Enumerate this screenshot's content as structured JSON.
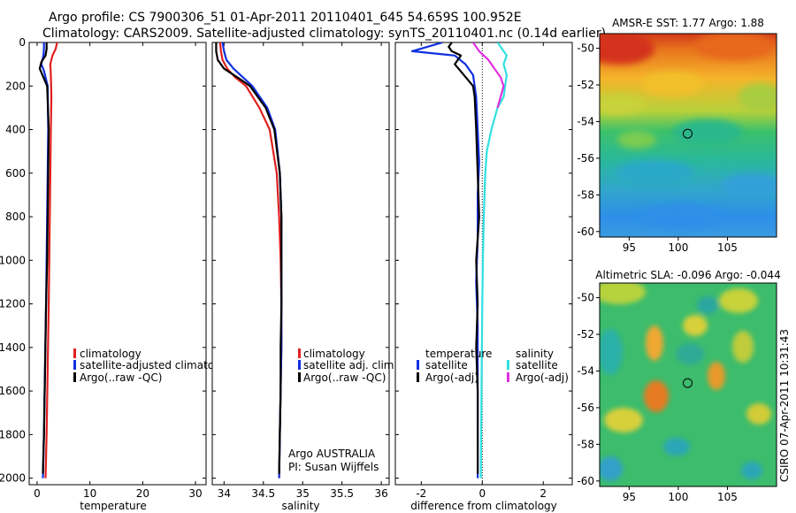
{
  "figure": {
    "title_line1": "Argo profile: CS 7900306_51 01-Apr-2011 20110401_645 54.659S 100.952E",
    "title_line2": "Climatology: CARS2009. Satellite-adjusted climatology: synTS_20110401.nc (0.14d earlier)",
    "side_stamp": "CSIRO 07-Apr-2011 10:31:43"
  },
  "colors": {
    "climatology": "#e02020",
    "satellite": "#1030e0",
    "argo": "#000000",
    "satellite_salinity": "#30e0e0",
    "argo_salinity": "#e030e0",
    "zero_line": "#000000"
  },
  "chart_data": [
    {
      "type": "line",
      "panel": "temperature",
      "xlabel": "temperature",
      "ylabel": "",
      "xlim": [
        -1.5,
        32
      ],
      "ylim": [
        0,
        2030
      ],
      "y_reversed": true,
      "xticks": [
        0,
        10,
        20,
        30
      ],
      "yticks": [
        0,
        200,
        400,
        600,
        800,
        1000,
        1200,
        1400,
        1600,
        1800,
        2000
      ],
      "legend": [
        {
          "label": "climatology",
          "color": "#e02020"
        },
        {
          "label": "satellite-adjusted climatolo",
          "color": "#1030e0"
        },
        {
          "label": "Argo(..raw -QC)",
          "color": "#000000"
        }
      ],
      "series": [
        {
          "name": "climatology",
          "color": "#e02020",
          "x": [
            3.8,
            3.5,
            2.9,
            2.5,
            2.6,
            2.7,
            2.6,
            2.5,
            2.4,
            2.3,
            2.2,
            2.0,
            1.8,
            1.6
          ],
          "y": [
            0,
            30,
            60,
            100,
            150,
            250,
            400,
            600,
            800,
            1000,
            1200,
            1500,
            1800,
            2000
          ]
        },
        {
          "name": "satellite",
          "color": "#1030e0",
          "x": [
            1.3,
            1.3,
            1.2,
            0.8,
            1.3,
            2.0,
            2.1,
            2.0,
            1.9,
            1.8,
            1.7,
            1.5,
            1.3,
            1.1
          ],
          "y": [
            0,
            30,
            60,
            100,
            130,
            200,
            400,
            600,
            800,
            1000,
            1200,
            1500,
            1800,
            2000
          ]
        },
        {
          "name": "Argo",
          "color": "#000000",
          "x": [
            1.8,
            1.8,
            1.6,
            0.8,
            0.5,
            1.9,
            2.2,
            2.1,
            2.0,
            1.9,
            1.7,
            1.5,
            1.3,
            1.1
          ],
          "y": [
            0,
            30,
            60,
            90,
            120,
            200,
            400,
            600,
            800,
            1000,
            1200,
            1500,
            1800,
            1980
          ]
        }
      ]
    },
    {
      "type": "line",
      "panel": "salinity",
      "xlabel": "salinity",
      "ylabel": "",
      "xlim": [
        33.85,
        36.1
      ],
      "ylim": [
        0,
        2030
      ],
      "y_reversed": true,
      "xticks": [
        34,
        34.5,
        35,
        35.5,
        36
      ],
      "legend": [
        {
          "label": "climatology",
          "color": "#e02020"
        },
        {
          "label": "satellite adj. clim.",
          "color": "#1030e0"
        },
        {
          "label": "Argo(..raw -QC)",
          "color": "#000000"
        }
      ],
      "annotation_line1": "Argo AUSTRALIA",
      "annotation_line2": "PI: Susan Wijffels",
      "series": [
        {
          "name": "climatology",
          "color": "#e02020",
          "x": [
            33.95,
            33.96,
            33.98,
            34.04,
            34.14,
            34.28,
            34.45,
            34.58,
            34.67,
            34.7,
            34.72,
            34.73,
            34.73,
            34.72,
            34.71,
            34.7
          ],
          "y": [
            0,
            40,
            80,
            120,
            160,
            200,
            300,
            400,
            600,
            800,
            1000,
            1200,
            1400,
            1600,
            1800,
            2000
          ]
        },
        {
          "name": "satellite",
          "color": "#1030e0",
          "x": [
            33.98,
            34.0,
            34.03,
            34.12,
            34.24,
            34.36,
            34.55,
            34.65,
            34.71,
            34.73,
            34.73,
            34.73,
            34.73,
            34.72,
            34.71,
            34.7
          ],
          "y": [
            0,
            40,
            80,
            120,
            160,
            200,
            300,
            400,
            600,
            800,
            1000,
            1200,
            1400,
            1600,
            1800,
            2000
          ]
        },
        {
          "name": "Argo",
          "color": "#000000",
          "x": [
            33.9,
            33.9,
            33.92,
            34.0,
            34.17,
            34.33,
            34.53,
            34.64,
            34.71,
            34.73,
            34.73,
            34.73,
            34.72,
            34.72,
            34.71,
            34.7
          ],
          "y": [
            0,
            40,
            80,
            120,
            160,
            200,
            300,
            400,
            600,
            800,
            1000,
            1200,
            1400,
            1600,
            1800,
            1980
          ]
        }
      ]
    },
    {
      "type": "line",
      "panel": "difference",
      "xlabel": "difference from climatology",
      "ylabel": "",
      "xlim": [
        -2.85,
        2.95
      ],
      "ylim": [
        0,
        2030
      ],
      "y_reversed": true,
      "xticks": [
        -2,
        0,
        2
      ],
      "legend_temperature_title": "temperature",
      "legend_salinity_title": "salinity",
      "legend_temperature": [
        {
          "label": "satellite",
          "color": "#1030e0"
        },
        {
          "label": "Argo(-adj)",
          "color": "#000000"
        }
      ],
      "legend_salinity": [
        {
          "label": "satellite",
          "color": "#30e0e0"
        },
        {
          "label": "Argo(-adj)",
          "color": "#e030e0"
        }
      ],
      "series": [
        {
          "name": "temperature satellite",
          "color": "#1030e0",
          "x": [
            -1.3,
            -1.8,
            -2.3,
            -0.9,
            -0.55,
            -0.3,
            -0.2,
            -0.15,
            -0.1,
            -0.15,
            -0.15,
            -0.2,
            -0.15,
            -0.15,
            -0.15,
            -0.15,
            -0.15
          ],
          "y": [
            0,
            20,
            40,
            60,
            100,
            150,
            250,
            400,
            550,
            700,
            900,
            1100,
            1300,
            1500,
            1700,
            1900,
            2000
          ]
        },
        {
          "name": "temperature Argo",
          "color": "#000000",
          "x": [
            -1.0,
            -1.1,
            -1.0,
            -0.7,
            -0.9,
            -0.6,
            -0.3,
            -0.25,
            -0.2,
            -0.15,
            -0.1,
            -0.2,
            -0.15,
            -0.2,
            -0.15,
            -0.15,
            -0.15
          ],
          "y": [
            0,
            20,
            40,
            60,
            100,
            150,
            200,
            250,
            400,
            600,
            800,
            1000,
            1200,
            1400,
            1600,
            1800,
            1980
          ]
        },
        {
          "name": "salinity satellite",
          "color": "#30e0e0",
          "x": [
            0.5,
            0.6,
            0.8,
            0.7,
            0.8,
            0.75,
            0.7,
            0.5,
            0.3,
            0.15,
            0.1,
            0.05,
            0.02,
            0.0,
            -0.02,
            -0.05
          ],
          "y": [
            0,
            20,
            60,
            100,
            150,
            200,
            250,
            300,
            400,
            500,
            600,
            800,
            1000,
            1200,
            1500,
            2000
          ]
        },
        {
          "name": "salinity Argo",
          "color": "#e030e0",
          "x": [
            -0.3,
            -0.1,
            0.2,
            0.4,
            0.6,
            0.7,
            0.6,
            0.5
          ],
          "y": [
            0,
            40,
            80,
            120,
            160,
            200,
            250,
            300
          ]
        }
      ]
    },
    {
      "type": "heatmap",
      "panel": "sst_map",
      "title": "AMSR-E SST: 1.77 Argo: 1.88",
      "xlim": [
        92,
        110
      ],
      "ylim": [
        -60.3,
        -49.2
      ],
      "xticks": [
        95,
        100,
        105
      ],
      "yticks": [
        -50,
        -52,
        -54,
        -56,
        -58,
        -60
      ],
      "argo_position": {
        "lon": 100.952,
        "lat": -54.659
      }
    },
    {
      "type": "heatmap",
      "panel": "sla_map",
      "title": "Altimetric SLA: -0.096 Argo: -0.044",
      "xlim": [
        92,
        110
      ],
      "ylim": [
        -60.3,
        -49.2
      ],
      "xticks": [
        95,
        100,
        105
      ],
      "yticks": [
        -50,
        -52,
        -54,
        -56,
        -58,
        -60
      ],
      "argo_position": {
        "lon": 100.952,
        "lat": -54.659
      }
    }
  ]
}
